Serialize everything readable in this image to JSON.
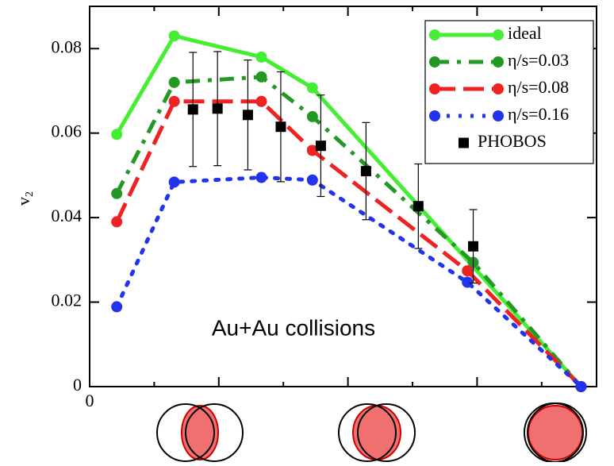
{
  "chart_data": {
    "type": "line",
    "ylabel": "v",
    "ylabel_sub": "2",
    "annotation": "Au+Au collisions",
    "xlim": [
      0,
      7.85
    ],
    "xticks": [
      0
    ],
    "x_major_marks": [
      2,
      4,
      6
    ],
    "x_minor_marks": [
      1,
      3,
      5,
      7
    ],
    "ylim": [
      0,
      0.09
    ],
    "yticks": [
      0,
      0.02,
      0.04,
      0.06,
      0.08
    ],
    "legend": "upper right",
    "series": [
      {
        "name": "ideal",
        "color": "#44ee33",
        "style": "solid",
        "x": [
          0.42,
          1.31,
          2.66,
          3.45,
          7.61
        ],
        "values": [
          0.0597,
          0.083,
          0.078,
          0.0707,
          0
        ]
      },
      {
        "name": "η/s=0.03",
        "color": "#229922",
        "style": "dashdot",
        "x": [
          0.42,
          1.31,
          2.66,
          3.45,
          5.94,
          7.61
        ],
        "values": [
          0.0457,
          0.072,
          0.0733,
          0.0639,
          0.0294,
          0
        ]
      },
      {
        "name": "η/s=0.08",
        "color": "#ee2222",
        "style": "dashed",
        "x": [
          0.42,
          1.31,
          2.66,
          3.45,
          5.85,
          7.61
        ],
        "values": [
          0.039,
          0.0675,
          0.0675,
          0.0559,
          0.0274,
          0
        ]
      },
      {
        "name": "η/s=0.16",
        "color": "#2233ee",
        "style": "dotted",
        "x": [
          0.42,
          1.31,
          2.66,
          3.45,
          5.85,
          7.61
        ],
        "values": [
          0.0189,
          0.0484,
          0.0495,
          0.0489,
          0.0247,
          0
        ]
      },
      {
        "name": "PHOBOS",
        "color": "#000000",
        "style": "points",
        "x": [
          1.6,
          1.98,
          2.45,
          2.96,
          3.58,
          4.28,
          5.09,
          5.94
        ],
        "values": [
          0.0656,
          0.0658,
          0.0643,
          0.0615,
          0.057,
          0.051,
          0.0427,
          0.0332
        ],
        "errors": [
          0.0135,
          0.0135,
          0.013,
          0.013,
          0.012,
          0.0115,
          0.01,
          0.0087
        ]
      }
    ]
  }
}
